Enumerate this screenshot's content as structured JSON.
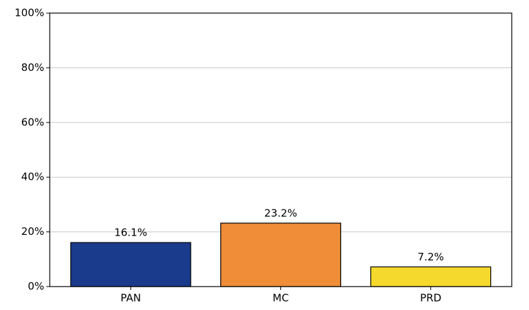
{
  "chart_data": {
    "type": "bar",
    "categories": [
      "PAN",
      "MC",
      "PRD"
    ],
    "values": [
      16.1,
      23.2,
      7.2
    ],
    "value_labels": [
      "16.1%",
      "23.2%",
      "7.2%"
    ],
    "colors": [
      "#1a3a8c",
      "#ef8d38",
      "#f5d92c"
    ],
    "ylim": [
      0,
      100
    ],
    "yticks": [
      {
        "value": 0,
        "label": "0%"
      },
      {
        "value": 20,
        "label": "20%"
      },
      {
        "value": 40,
        "label": "40%"
      },
      {
        "value": 60,
        "label": "60%"
      },
      {
        "value": 80,
        "label": "80%"
      },
      {
        "value": 100,
        "label": "100%"
      }
    ],
    "grid": true
  }
}
